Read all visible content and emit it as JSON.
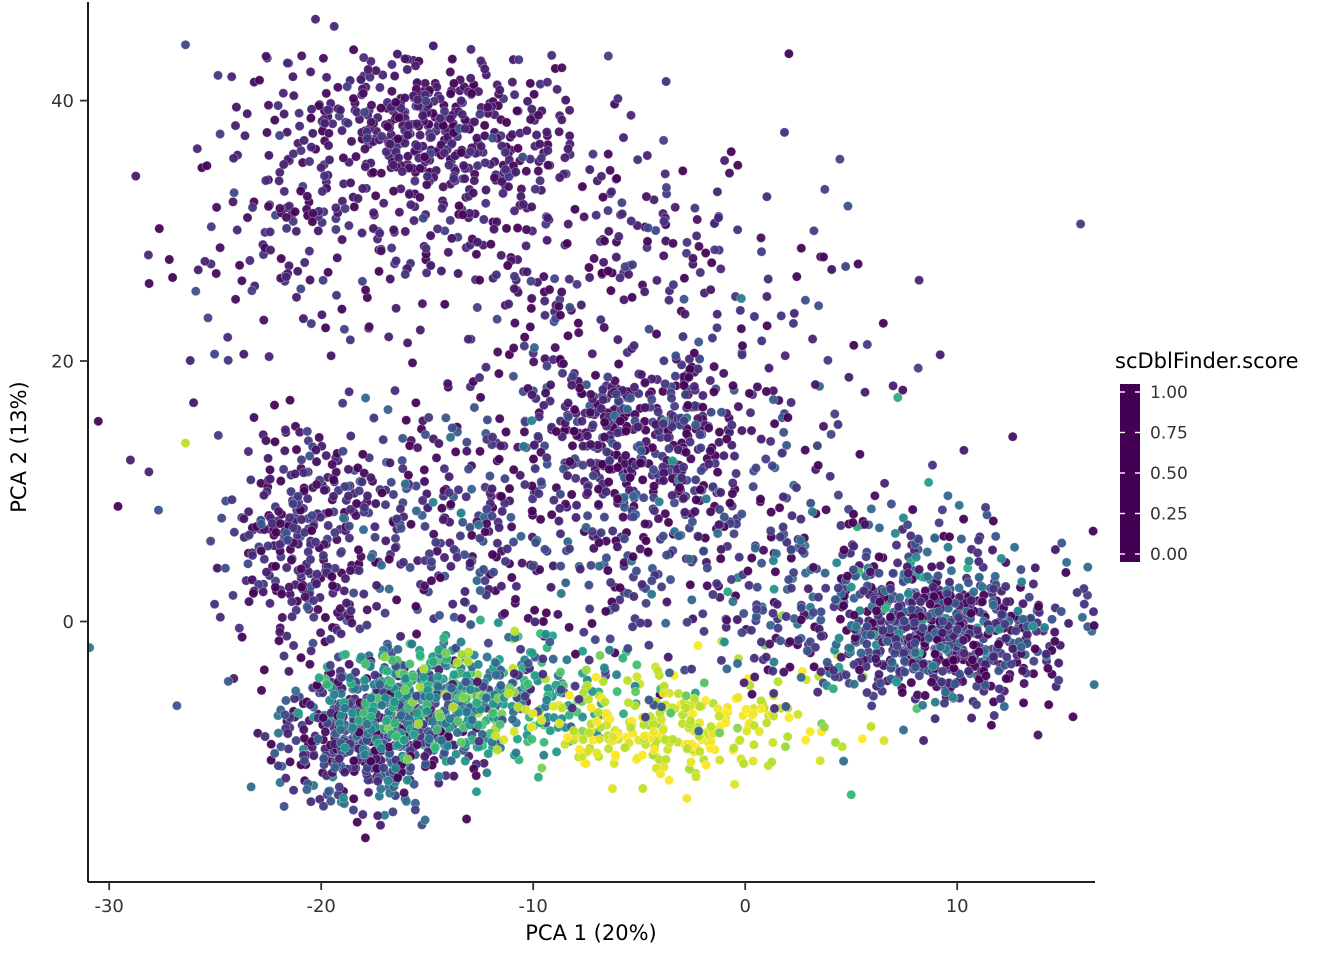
{
  "chart_data": {
    "type": "scatter",
    "title": "",
    "xlabel": "PCA 1 (20%)",
    "ylabel": "PCA 2 (13%)",
    "xlim": [
      -31,
      16.5
    ],
    "ylim": [
      -20,
      46.8
    ],
    "x_ticks": [
      -30,
      -20,
      -10,
      0,
      10
    ],
    "y_ticks": [
      0,
      20,
      40
    ],
    "grid": false,
    "background": "#ffffff",
    "point_radius": 4.6,
    "legend": {
      "title": "scDblFinder.score",
      "position": "right",
      "ticks": [
        {
          "value": 1.0,
          "label": "1.00"
        },
        {
          "value": 0.75,
          "label": "0.75"
        },
        {
          "value": 0.5,
          "label": "0.50"
        },
        {
          "value": 0.25,
          "label": "0.25"
        },
        {
          "value": 0.0,
          "label": "0.00"
        }
      ]
    },
    "colormap_name": "viridis",
    "colormap": [
      {
        "t": 0.0,
        "c": "#440154"
      },
      {
        "t": 0.1,
        "c": "#482878"
      },
      {
        "t": 0.2,
        "c": "#3e4989"
      },
      {
        "t": 0.3,
        "c": "#31688e"
      },
      {
        "t": 0.4,
        "c": "#26828e"
      },
      {
        "t": 0.5,
        "c": "#1f9e89"
      },
      {
        "t": 0.6,
        "c": "#35b779"
      },
      {
        "t": 0.7,
        "c": "#6ece58"
      },
      {
        "t": 0.8,
        "c": "#b5de2b"
      },
      {
        "t": 0.9,
        "c": "#bddf26"
      },
      {
        "t": 1.0,
        "c": "#fde725"
      }
    ],
    "clusters": [
      {
        "name": "top-core",
        "cx": -15.1,
        "cy": 38.0,
        "sx": 2.8,
        "sy": 2.6,
        "n": 320,
        "score": 0.06,
        "score_sd": 0.04
      },
      {
        "name": "top-halo",
        "cx": -13.9,
        "cy": 33.0,
        "sx": 4.7,
        "sy": 5.2,
        "n": 320,
        "score": 0.07,
        "score_sd": 0.05
      },
      {
        "name": "top-left-sparse",
        "cx": -22.4,
        "cy": 30.8,
        "sx": 2.5,
        "sy": 5.0,
        "n": 90,
        "score": 0.07,
        "score_sd": 0.05
      },
      {
        "name": "upper-right-arm",
        "cx": -4.0,
        "cy": 27.7,
        "sx": 5.0,
        "sy": 4.0,
        "n": 140,
        "score": 0.08,
        "score_sd": 0.06
      },
      {
        "name": "mid-core",
        "cx": -5.0,
        "cy": 14.7,
        "sx": 2.6,
        "sy": 3.6,
        "n": 300,
        "score": 0.07,
        "score_sd": 0.09
      },
      {
        "name": "mid-halo",
        "cx": -5.9,
        "cy": 10.9,
        "sx": 6.0,
        "sy": 5.0,
        "n": 250,
        "score": 0.1,
        "score_sd": 0.1
      },
      {
        "name": "left-band",
        "cx": -20.8,
        "cy": 6.3,
        "sx": 1.7,
        "sy": 4.5,
        "n": 250,
        "score": 0.08,
        "score_sd": 0.07
      },
      {
        "name": "left-mid-sparse",
        "cx": -15.3,
        "cy": 7.8,
        "sx": 4.0,
        "sy": 4.5,
        "n": 210,
        "score": 0.1,
        "score_sd": 0.1
      },
      {
        "name": "bottom-left-dense",
        "cx": -17.6,
        "cy": -8.2,
        "sx": 2.3,
        "sy": 2.9,
        "n": 560,
        "score": 0.16,
        "score_sd": 0.15
      },
      {
        "name": "bottom-left-teal",
        "cx": -14.4,
        "cy": -6.0,
        "sx": 2.6,
        "sy": 2.4,
        "n": 360,
        "score": 0.45,
        "score_sd": 0.15
      },
      {
        "name": "teal-bridge",
        "cx": -9.7,
        "cy": -5.3,
        "sx": 2.6,
        "sy": 1.9,
        "n": 140,
        "score": 0.5,
        "score_sd": 0.2
      },
      {
        "name": "doublet-yellow",
        "cx": -3.5,
        "cy": -8.6,
        "sx": 3.2,
        "sy": 1.7,
        "n": 210,
        "score": 0.93,
        "score_sd": 0.07
      },
      {
        "name": "yellow-fringe",
        "cx": -2.1,
        "cy": -6.0,
        "sx": 4.5,
        "sy": 2.6,
        "n": 60,
        "score": 0.85,
        "score_sd": 0.12
      },
      {
        "name": "right-dense",
        "cx": 9.2,
        "cy": -1.0,
        "sx": 2.9,
        "sy": 2.7,
        "n": 620,
        "score": 0.13,
        "score_sd": 0.14
      },
      {
        "name": "right-halo",
        "cx": 5.9,
        "cy": 1.7,
        "sx": 4.5,
        "sy": 4.0,
        "n": 270,
        "score": 0.2,
        "score_sd": 0.17
      },
      {
        "name": "center-sparse",
        "cx": -4.0,
        "cy": 4.8,
        "sx": 7.0,
        "sy": 5.0,
        "n": 240,
        "score": 0.15,
        "score_sd": 0.14
      },
      {
        "name": "wide-sparse",
        "cx": -8.7,
        "cy": 14.7,
        "sx": 11.0,
        "sy": 9.0,
        "n": 170,
        "score": 0.1,
        "score_sd": 0.1
      }
    ],
    "outliers": [
      {
        "x": -29.0,
        "y": 12.4,
        "score": 0.08
      },
      {
        "x": -26.4,
        "y": 13.7,
        "score": 0.88
      },
      {
        "x": -22.6,
        "y": 43.4,
        "score": 0.05
      },
      {
        "x": -20.5,
        "y": 42.2,
        "score": 0.06
      },
      {
        "x": -24.0,
        "y": 39.5,
        "score": 0.05
      },
      {
        "x": -25.8,
        "y": 27.0,
        "score": 0.07
      },
      {
        "x": 14.2,
        "y": -2.5,
        "score": 0.1
      },
      {
        "x": 5.0,
        "y": -13.3,
        "score": 0.6
      },
      {
        "x": 7.2,
        "y": 17.2,
        "score": 0.55
      },
      {
        "x": -0.5,
        "y": -12.5,
        "score": 0.95
      }
    ]
  }
}
